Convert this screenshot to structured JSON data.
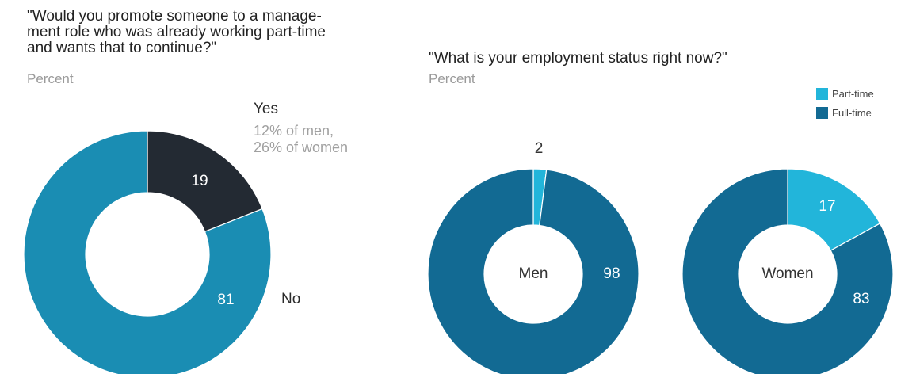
{
  "colors": {
    "promote_no": "#1a8db3",
    "promote_yes": "#232a33",
    "part_time": "#22b5da",
    "full_time": "#126a93"
  },
  "legend": [
    {
      "label": "Part-time",
      "color": "#22b5da"
    },
    {
      "label": "Full-time",
      "color": "#126a93"
    }
  ],
  "chart_data": [
    {
      "type": "pie",
      "title": "\"Would you promote someone to a manage-ment role who was already working part-time and wants that to continue?\"",
      "title_lines": [
        "\"Would you promote someone to a manage-",
        "ment role who was already working part-time",
        "and wants that to continue?\""
      ],
      "unit": "Percent",
      "slices": [
        {
          "label": "Yes",
          "value": 19,
          "color": "#232a33",
          "note": [
            "12% of men,",
            "26% of women"
          ]
        },
        {
          "label": "No",
          "value": 81,
          "color": "#1a8db3"
        }
      ]
    },
    {
      "type": "pie",
      "title": "\"What is your employment status right now?\"",
      "unit": "Percent",
      "groups": [
        {
          "name": "Men",
          "slices": [
            {
              "label": "Part-time",
              "value": 2,
              "color": "#22b5da"
            },
            {
              "label": "Full-time",
              "value": 98,
              "color": "#126a93"
            }
          ]
        },
        {
          "name": "Women",
          "slices": [
            {
              "label": "Part-time",
              "value": 17,
              "color": "#22b5da"
            },
            {
              "label": "Full-time",
              "value": 83,
              "color": "#126a93"
            }
          ]
        }
      ]
    }
  ]
}
